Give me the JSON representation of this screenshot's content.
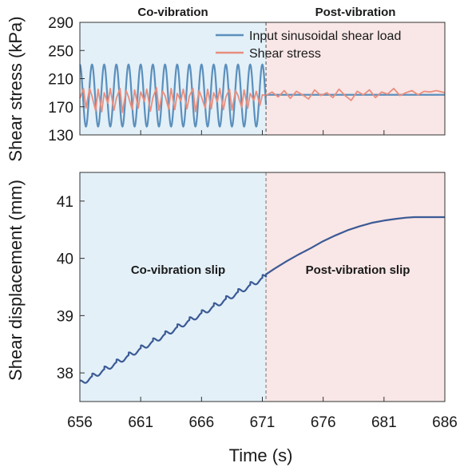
{
  "chart_data": [
    {
      "type": "line",
      "region_labels": [
        "Co-vibration",
        "Post-vibration"
      ],
      "ylabel": "Shear stress (kPa)",
      "xlabel": "",
      "xlim": [
        656,
        686
      ],
      "ylim": [
        130,
        290
      ],
      "yticks": [
        "130",
        "170",
        "210",
        "250",
        "290"
      ],
      "xticks": [
        656,
        661,
        666,
        671,
        676,
        681,
        686
      ],
      "grid": false,
      "legend": "top-right",
      "vibration_end": 671.3,
      "regions": [
        {
          "from": 656,
          "to": 671.3,
          "color": "#e3f0f8"
        },
        {
          "from": 671.3,
          "to": 686,
          "color": "#f9e6e6"
        }
      ],
      "series": [
        {
          "name": "Input sinusoidal shear load",
          "color": "#5b8fbc",
          "mean": 186,
          "amplitude": 44,
          "period_s": 1.0,
          "start": 656.0,
          "x_after": [
            671.3,
            686
          ],
          "y_after": [
            187,
            187
          ]
        },
        {
          "name": "Shear stress",
          "color": "#e98e7e",
          "x": [
            656.0,
            656.3,
            656.5,
            656.8,
            657.0,
            657.3,
            657.5,
            657.8,
            658.0,
            658.3,
            658.5,
            658.8,
            659.0,
            659.3,
            659.5,
            659.8,
            660.0,
            660.3,
            660.5,
            660.8,
            661.0,
            661.3,
            661.5,
            661.8,
            662.0,
            662.3,
            662.5,
            662.8,
            663.0,
            663.3,
            663.5,
            663.8,
            664.0,
            664.3,
            664.5,
            664.8,
            665.0,
            665.3,
            665.5,
            665.8,
            666.0,
            666.3,
            666.5,
            666.8,
            667.0,
            667.3,
            667.5,
            667.8,
            668.0,
            668.3,
            668.5,
            668.8,
            669.0,
            669.3,
            669.5,
            669.8,
            670.0,
            670.3,
            670.5,
            670.8,
            671.0,
            671.3,
            671.8,
            672.3,
            672.8,
            673.3,
            673.8,
            674.3,
            674.8,
            675.3,
            675.8,
            676.3,
            676.8,
            677.3,
            677.8,
            678.3,
            678.8,
            679.3,
            679.8,
            680.3,
            680.8,
            681.3,
            681.8,
            682.3,
            682.8,
            683.3,
            683.8,
            684.3,
            684.8,
            685.3,
            686.0
          ],
          "y": [
            182,
            196,
            168,
            196,
            185,
            164,
            195,
            163,
            190,
            175,
            196,
            165,
            182,
            196,
            162,
            193,
            184,
            166,
            194,
            168,
            191,
            178,
            195,
            164,
            183,
            197,
            165,
            192,
            186,
            167,
            196,
            166,
            189,
            178,
            195,
            167,
            185,
            196,
            163,
            193,
            184,
            168,
            195,
            167,
            190,
            177,
            196,
            166,
            184,
            195,
            165,
            193,
            186,
            169,
            194,
            168,
            189,
            179,
            192,
            172,
            187,
            186,
            191,
            184,
            193,
            182,
            192,
            187,
            181,
            194,
            186,
            190,
            183,
            195,
            186,
            179,
            192,
            187,
            194,
            183,
            191,
            188,
            196,
            186,
            190,
            193,
            187,
            192,
            191,
            193,
            190
          ]
        }
      ]
    },
    {
      "type": "line",
      "region_labels": [
        "Co-vibration slip",
        "Post-vibration slip"
      ],
      "xlabel": "Time (s)",
      "ylabel": "Shear displacement (mm)",
      "xlim": [
        656,
        686
      ],
      "ylim": [
        37.5,
        41.5
      ],
      "yticks": [
        "38",
        "39",
        "40",
        "41"
      ],
      "xticks": [
        "656",
        "661",
        "666",
        "671",
        "676",
        "681",
        "686"
      ],
      "grid": false,
      "vibration_end": 671.3,
      "regions": [
        {
          "from": 656,
          "to": 671.3,
          "color": "#e3f0f8"
        },
        {
          "from": 671.3,
          "to": 686,
          "color": "#f9e6e6"
        }
      ],
      "series": [
        {
          "name": "",
          "color": "#3b5a95",
          "staircase": {
            "start_x": 656.0,
            "start_y": 37.84,
            "end_x": 671.3,
            "end_y": 39.72,
            "period_s": 1.0
          },
          "x": [
            671.3,
            672.0,
            673.0,
            674.0,
            675.0,
            676.0,
            677.0,
            678.0,
            679.0,
            680.0,
            681.0,
            682.0,
            682.8,
            683.5,
            684.5,
            686.0
          ],
          "y": [
            39.72,
            39.82,
            39.95,
            40.07,
            40.18,
            40.3,
            40.4,
            40.49,
            40.56,
            40.62,
            40.66,
            40.69,
            40.71,
            40.72,
            40.72,
            40.72
          ]
        }
      ]
    }
  ]
}
